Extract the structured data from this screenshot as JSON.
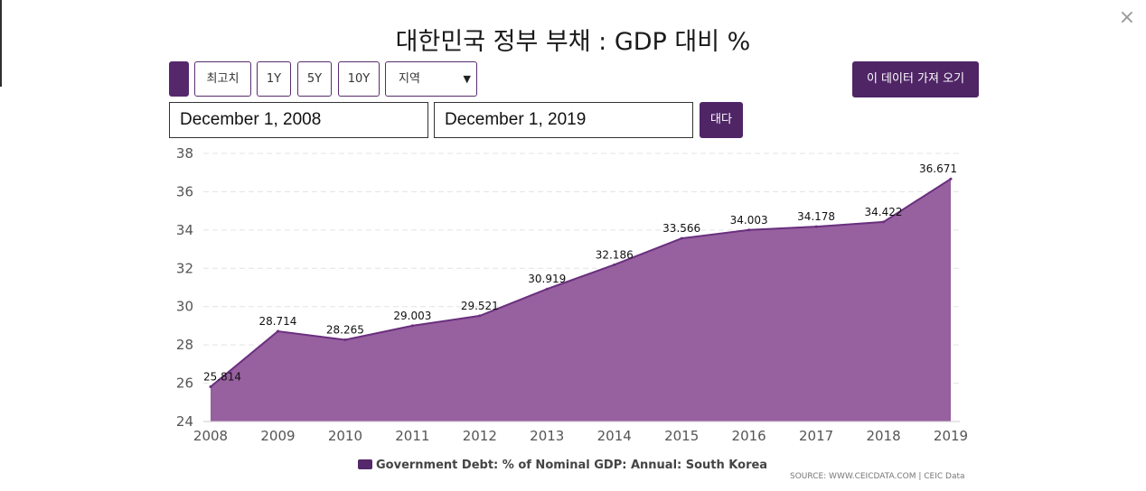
{
  "title": "대한민국 정부 부채 : GDP 대비 %",
  "close_icon": "close-icon",
  "toolbar": {
    "highest_label": "최고치",
    "range_1y": "1Y",
    "range_5y": "5Y",
    "range_10y": "10Y",
    "region_label": "지역",
    "import_label": "이 데이터 가져 오기"
  },
  "date_range": {
    "start": "December 1, 2008",
    "end": "December 1, 2019",
    "apply_label": "대다"
  },
  "credit": "SOURCE: WWW.CEICDATA.COM | CEIC Data",
  "colors": {
    "accent": "#55286b",
    "area_fill": "#97609f",
    "area_line": "#6a2f7e"
  },
  "chart_data": {
    "type": "area",
    "title": "대한민국 정부 부채 : GDP 대비 %",
    "x": [
      "2008",
      "2009",
      "2010",
      "2011",
      "2012",
      "2013",
      "2014",
      "2015",
      "2016",
      "2017",
      "2018",
      "2019"
    ],
    "series": [
      {
        "name": "Government Debt: % of Nominal GDP: Annual: South Korea",
        "values": [
          25.814,
          28.714,
          28.265,
          29.003,
          29.521,
          30.919,
          32.186,
          33.566,
          34.003,
          34.178,
          34.422,
          36.671
        ],
        "labels": [
          "25.814",
          "28.714",
          "28.265",
          "29.003",
          "29.521",
          "30.919",
          "32.186",
          "33.566",
          "34.003",
          "34.178",
          "34.422",
          "36.671"
        ]
      }
    ],
    "ylim": [
      24,
      38
    ],
    "yticks": [
      "24",
      "26",
      "28",
      "30",
      "32",
      "34",
      "36",
      "38"
    ],
    "grid": true,
    "legend_position": "bottom-center"
  }
}
